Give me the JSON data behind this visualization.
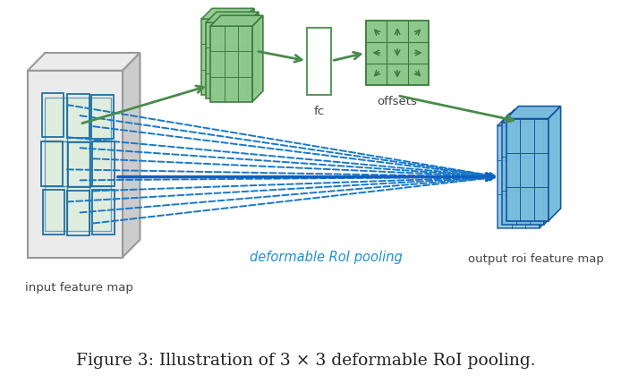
{
  "title": "Figure 3: Illustration of 3 × 3 deformable RoI pooling.",
  "label_input": "input feature map",
  "label_output": "output roi feature map",
  "label_fc": "fc",
  "label_offsets": "offsets",
  "label_deformable": "deformable RoI pooling",
  "bg_color": "#ffffff",
  "green_face": "#8dc88d",
  "green_light": "#c8e8c8",
  "green_edge": "#4a8a4a",
  "green_dark": "#3a7a3a",
  "blue_face": "#7abcdc",
  "blue_light": "#a8d0e8",
  "blue_edge": "#2070a0",
  "blue_dark": "#1050a0",
  "gray_face": "#d8d8d8",
  "gray_light": "#ebebeb",
  "gray_mid": "#cccccc",
  "gray_edge": "#999999",
  "arrow_green": "#4a8a4a",
  "arrow_blue": "#1060c0",
  "dashed_blue": "#1878c8",
  "fc_face": "#ffffff",
  "fc_edge": "#5a9a5a",
  "caption_color": "#222222",
  "label_color": "#444444",
  "deform_color": "#2090d0"
}
